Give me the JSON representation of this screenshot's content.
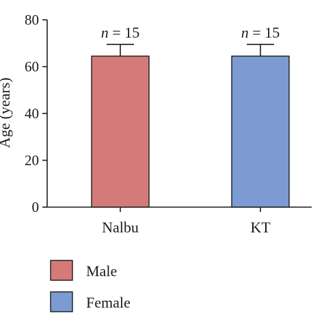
{
  "chart_data": {
    "type": "bar",
    "categories": [
      "Nalbu",
      "KT"
    ],
    "values": [
      64.5,
      64.5
    ],
    "errors": [
      5,
      5
    ],
    "annotations": [
      {
        "var": "n",
        "text": " = 15"
      },
      {
        "var": "n",
        "text": " = 15"
      }
    ],
    "bar_colors": [
      "#d47b79",
      "#7b9bd2"
    ],
    "ylabel": "Age (years)",
    "xlabel": "",
    "ylim": [
      0,
      80
    ],
    "yticks": [
      0,
      20,
      40,
      60,
      80
    ],
    "grid": false,
    "legend": [
      {
        "label": "Male",
        "color": "#d47b79"
      },
      {
        "label": "Female",
        "color": "#7b9bd2"
      }
    ],
    "legend_position": "bottom-left"
  }
}
